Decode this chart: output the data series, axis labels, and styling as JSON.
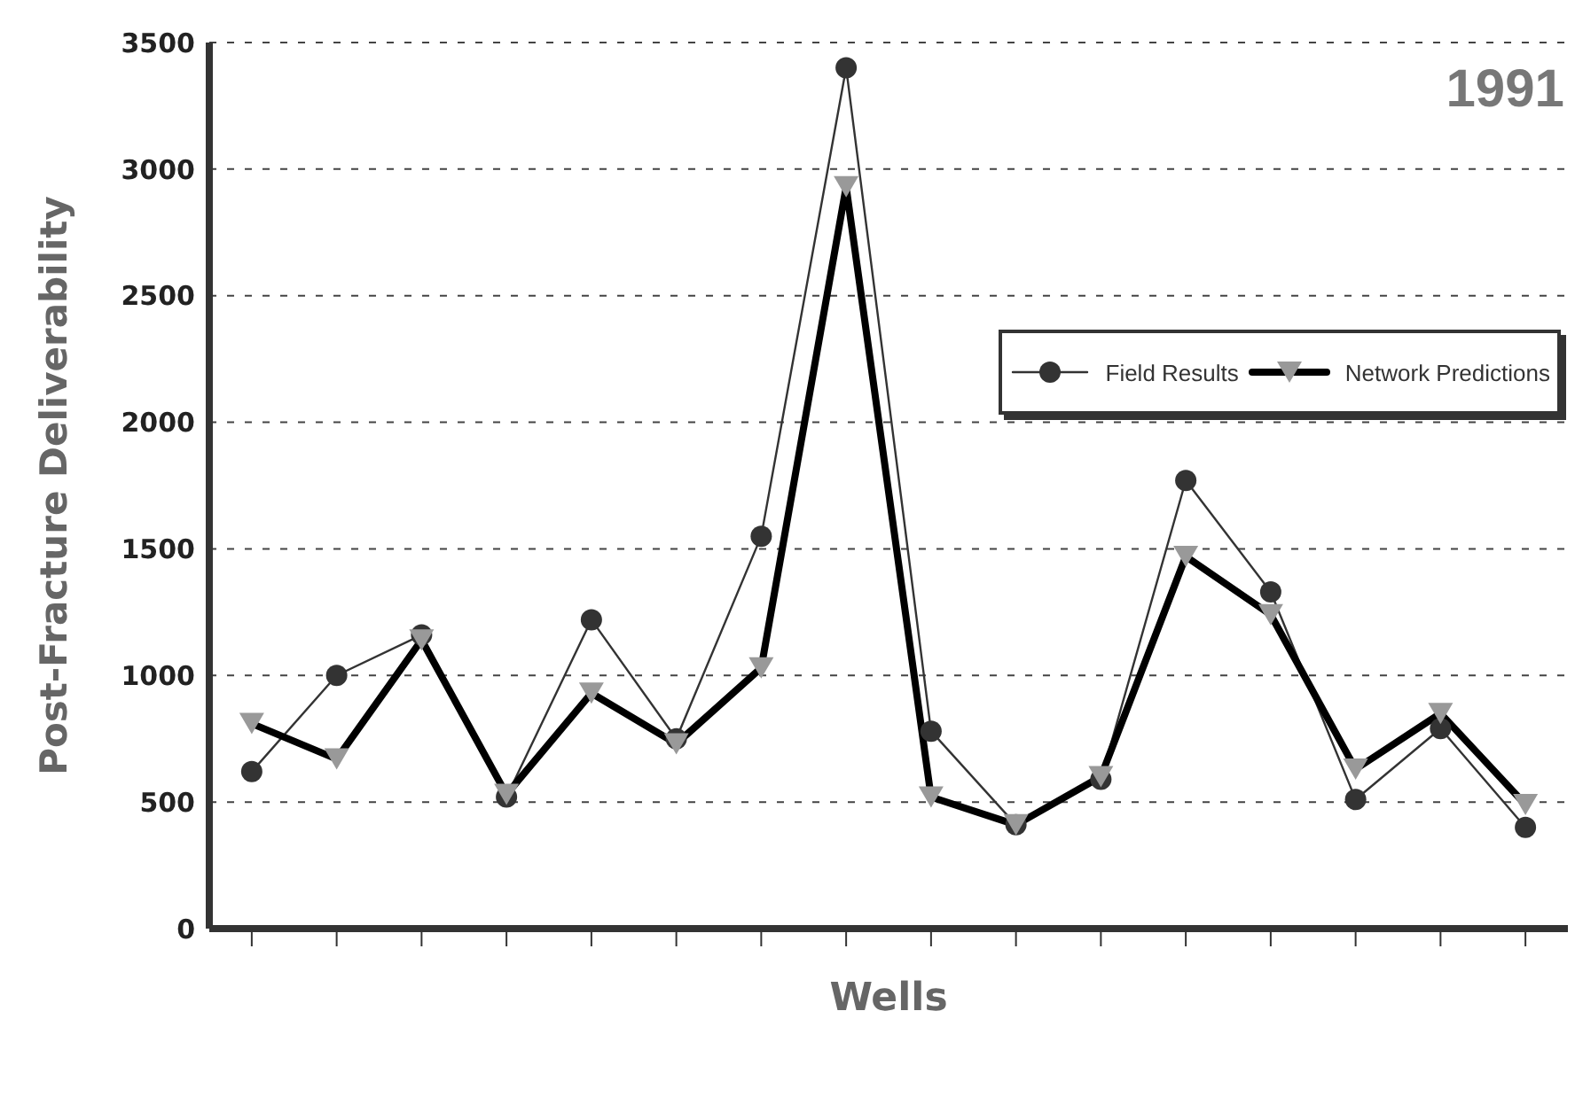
{
  "chart_data": {
    "type": "line",
    "xlabel": "Wells",
    "ylabel": "Post-Fracture Deliverability",
    "annotations": [
      "1991"
    ],
    "categories": [
      null,
      null,
      null,
      null,
      null,
      null,
      null,
      null,
      null,
      null,
      null,
      null,
      null,
      null,
      null,
      null
    ],
    "series": [
      {
        "name": "Field Results",
        "color": "#333333",
        "marker": "circle",
        "values": [
          620,
          1000,
          1160,
          520,
          1220,
          750,
          1550,
          3400,
          780,
          410,
          590,
          1770,
          1330,
          510,
          790,
          400
        ]
      },
      {
        "name": "Network Predictions",
        "color": "#000000",
        "marker": "triangle",
        "values": [
          810,
          670,
          1140,
          530,
          930,
          730,
          1030,
          2930,
          520,
          410,
          600,
          1470,
          1240,
          630,
          850,
          490
        ]
      }
    ],
    "ylim": [
      0,
      3500
    ],
    "yticks": [
      0,
      500,
      1000,
      1500,
      2000,
      2500,
      3000,
      3500
    ],
    "grid": "y",
    "legend": "right",
    "line_style": "solid"
  }
}
